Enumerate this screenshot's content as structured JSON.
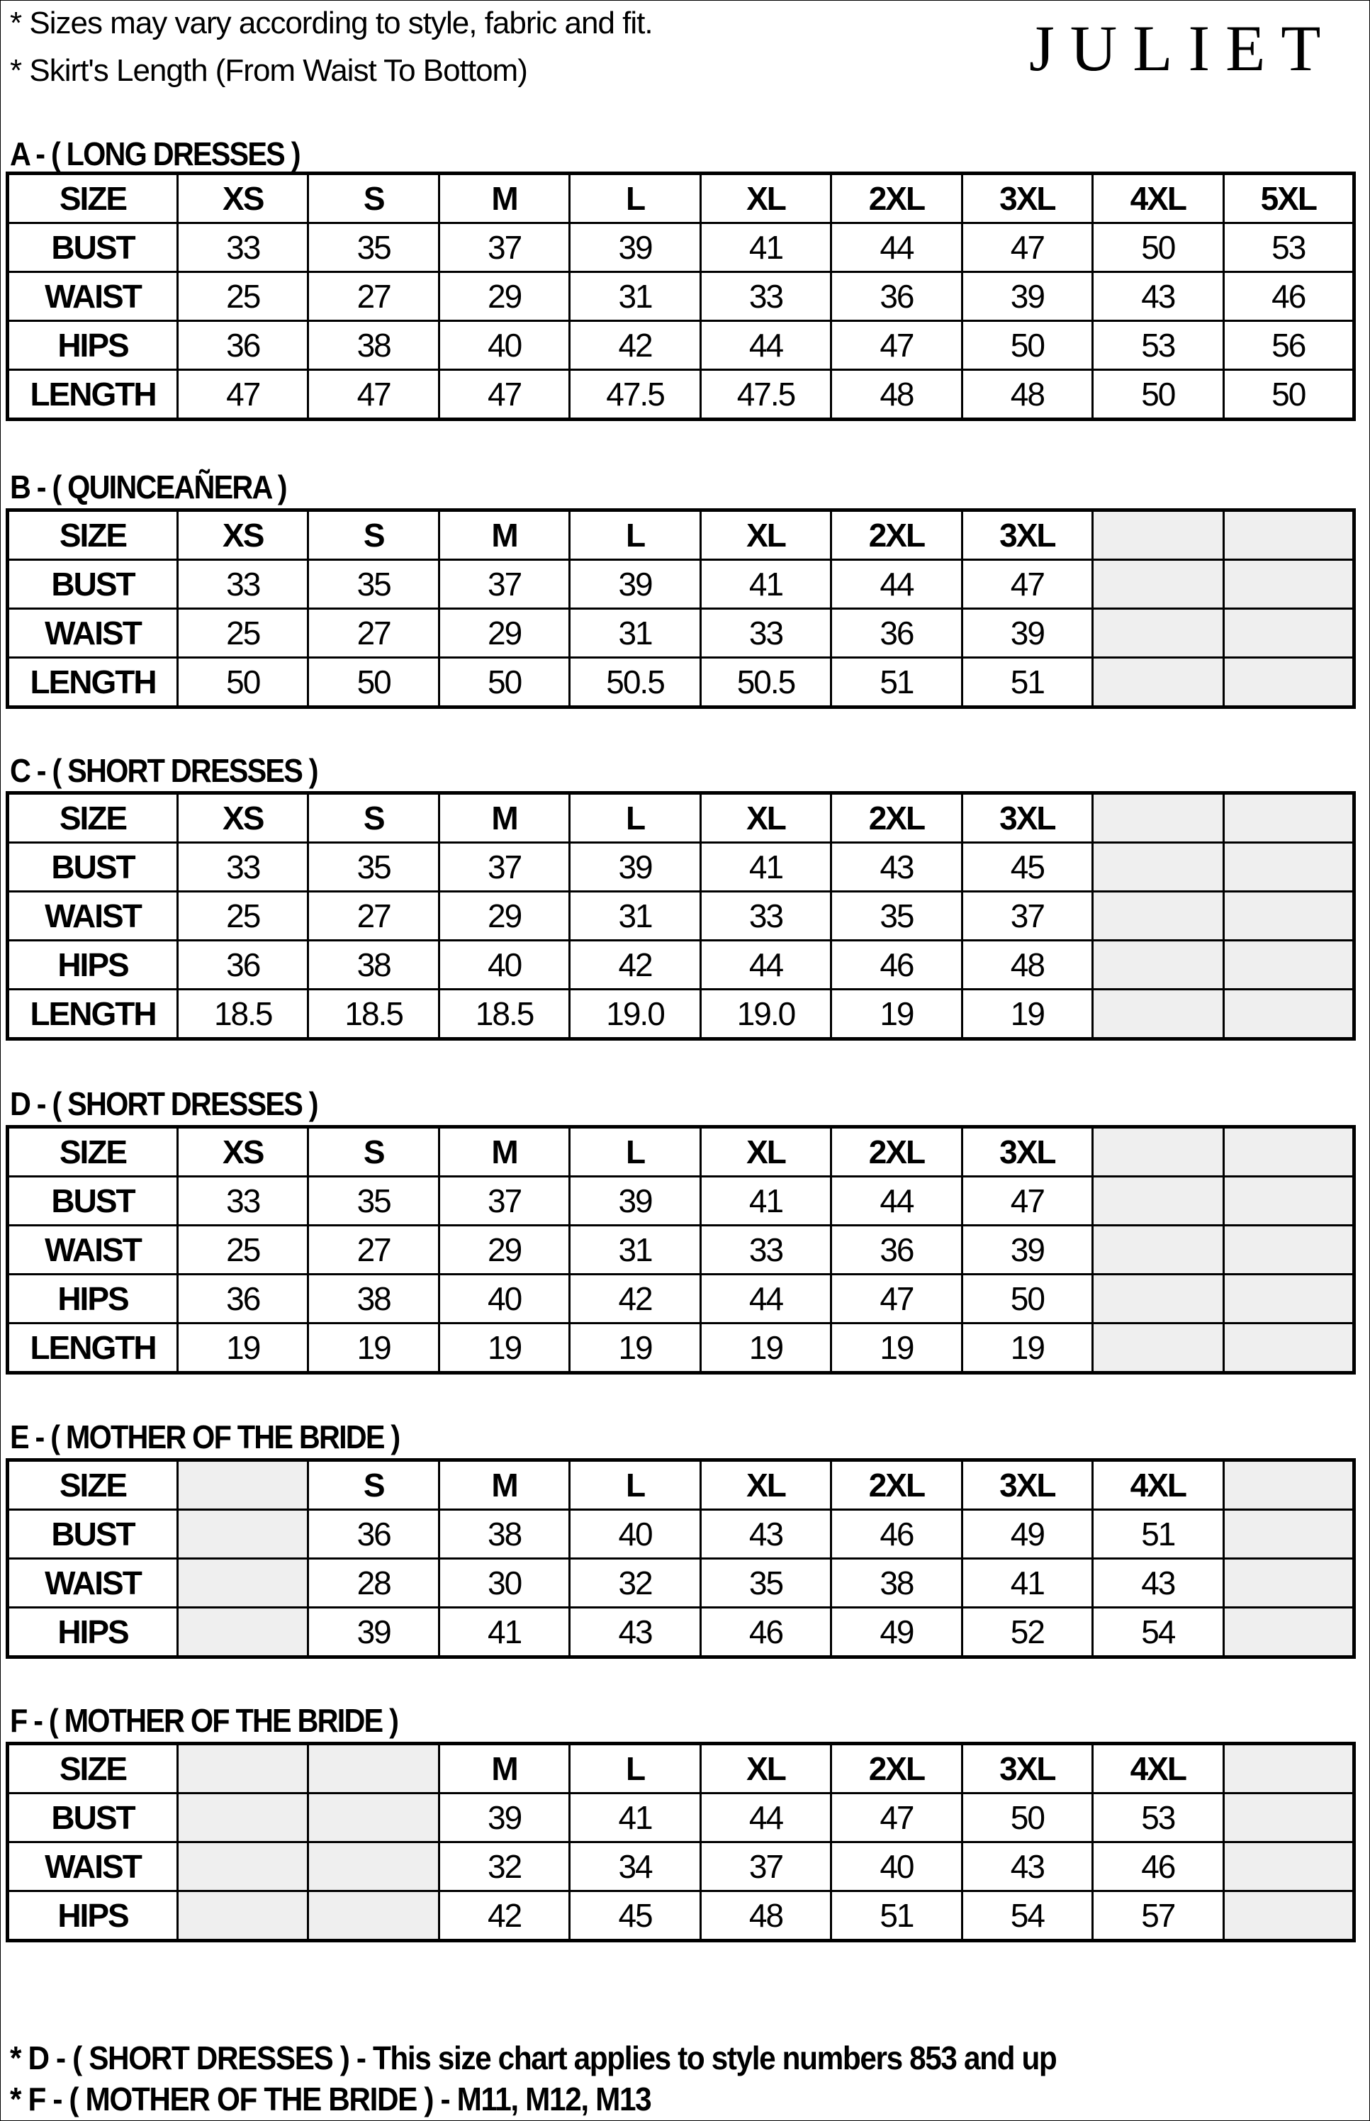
{
  "header": {
    "notes": [
      "* Sizes may vary according to style, fabric and fit.",
      "* Skirt's Length (From Waist To Bottom)"
    ],
    "logo": "JULIET"
  },
  "sections": [
    {
      "title": "A  -  ( LONG DRESSES )",
      "rows": [
        [
          "SIZE",
          "XS",
          "S",
          "M",
          "L",
          "XL",
          "2XL",
          "3XL",
          "4XL",
          "5XL"
        ],
        [
          "BUST",
          "33",
          "35",
          "37",
          "39",
          "41",
          "44",
          "47",
          "50",
          "53"
        ],
        [
          "WAIST",
          "25",
          "27",
          "29",
          "31",
          "33",
          "36",
          "39",
          "43",
          "46"
        ],
        [
          "HIPS",
          "36",
          "38",
          "40",
          "42",
          "44",
          "47",
          "50",
          "53",
          "56"
        ],
        [
          "LENGTH",
          "47",
          "47",
          "47",
          "47.5",
          "47.5",
          "48",
          "48",
          "50",
          "50"
        ]
      ]
    },
    {
      "title": "B - ( QUINCEAÑERA )",
      "rows": [
        [
          "SIZE",
          "XS",
          "S",
          "M",
          "L",
          "XL",
          "2XL",
          "3XL",
          null,
          null
        ],
        [
          "BUST",
          "33",
          "35",
          "37",
          "39",
          "41",
          "44",
          "47",
          null,
          null
        ],
        [
          "WAIST",
          "25",
          "27",
          "29",
          "31",
          "33",
          "36",
          "39",
          null,
          null
        ],
        [
          "LENGTH",
          "50",
          "50",
          "50",
          "50.5",
          "50.5",
          "51",
          "51",
          null,
          null
        ]
      ]
    },
    {
      "title": "C - ( SHORT DRESSES )",
      "rows": [
        [
          "SIZE",
          "XS",
          "S",
          "M",
          "L",
          "XL",
          "2XL",
          "3XL",
          null,
          null
        ],
        [
          "BUST",
          "33",
          "35",
          "37",
          "39",
          "41",
          "43",
          "45",
          null,
          null
        ],
        [
          "WAIST",
          "25",
          "27",
          "29",
          "31",
          "33",
          "35",
          "37",
          null,
          null
        ],
        [
          "HIPS",
          "36",
          "38",
          "40",
          "42",
          "44",
          "46",
          "48",
          null,
          null
        ],
        [
          "LENGTH",
          "18.5",
          "18.5",
          "18.5",
          "19.0",
          "19.0",
          "19",
          "19",
          null,
          null
        ]
      ]
    },
    {
      "title": "D - ( SHORT DRESSES )",
      "rows": [
        [
          "SIZE",
          "XS",
          "S",
          "M",
          "L",
          "XL",
          "2XL",
          "3XL",
          null,
          null
        ],
        [
          "BUST",
          "33",
          "35",
          "37",
          "39",
          "41",
          "44",
          "47",
          null,
          null
        ],
        [
          "WAIST",
          "25",
          "27",
          "29",
          "31",
          "33",
          "36",
          "39",
          null,
          null
        ],
        [
          "HIPS",
          "36",
          "38",
          "40",
          "42",
          "44",
          "47",
          "50",
          null,
          null
        ],
        [
          "LENGTH",
          "19",
          "19",
          "19",
          "19",
          "19",
          "19",
          "19",
          null,
          null
        ]
      ]
    },
    {
      "title": "E - ( MOTHER OF THE BRIDE )",
      "rows": [
        [
          "SIZE",
          null,
          "S",
          "M",
          "L",
          "XL",
          "2XL",
          "3XL",
          "4XL",
          null
        ],
        [
          "BUST",
          null,
          "36",
          "38",
          "40",
          "43",
          "46",
          "49",
          "51",
          null
        ],
        [
          "WAIST",
          null,
          "28",
          "30",
          "32",
          "35",
          "38",
          "41",
          "43",
          null
        ],
        [
          "HIPS",
          null,
          "39",
          "41",
          "43",
          "46",
          "49",
          "52",
          "54",
          null
        ]
      ]
    },
    {
      "title": "F - ( MOTHER OF THE BRIDE )",
      "rows": [
        [
          "SIZE",
          null,
          null,
          "M",
          "L",
          "XL",
          "2XL",
          "3XL",
          "4XL",
          null
        ],
        [
          "BUST",
          null,
          null,
          "39",
          "41",
          "44",
          "47",
          "50",
          "53",
          null
        ],
        [
          "WAIST",
          null,
          null,
          "32",
          "34",
          "37",
          "40",
          "43",
          "46",
          null
        ],
        [
          "HIPS",
          null,
          null,
          "42",
          "45",
          "48",
          "51",
          "54",
          "57",
          null
        ]
      ]
    }
  ],
  "footer": {
    "notes": [
      "* D - ( SHORT DRESSES ) -  This size chart applies to style numbers 853 and up",
      "* F - ( MOTHER OF THE BRIDE ) -  M11, M12, M13"
    ]
  }
}
